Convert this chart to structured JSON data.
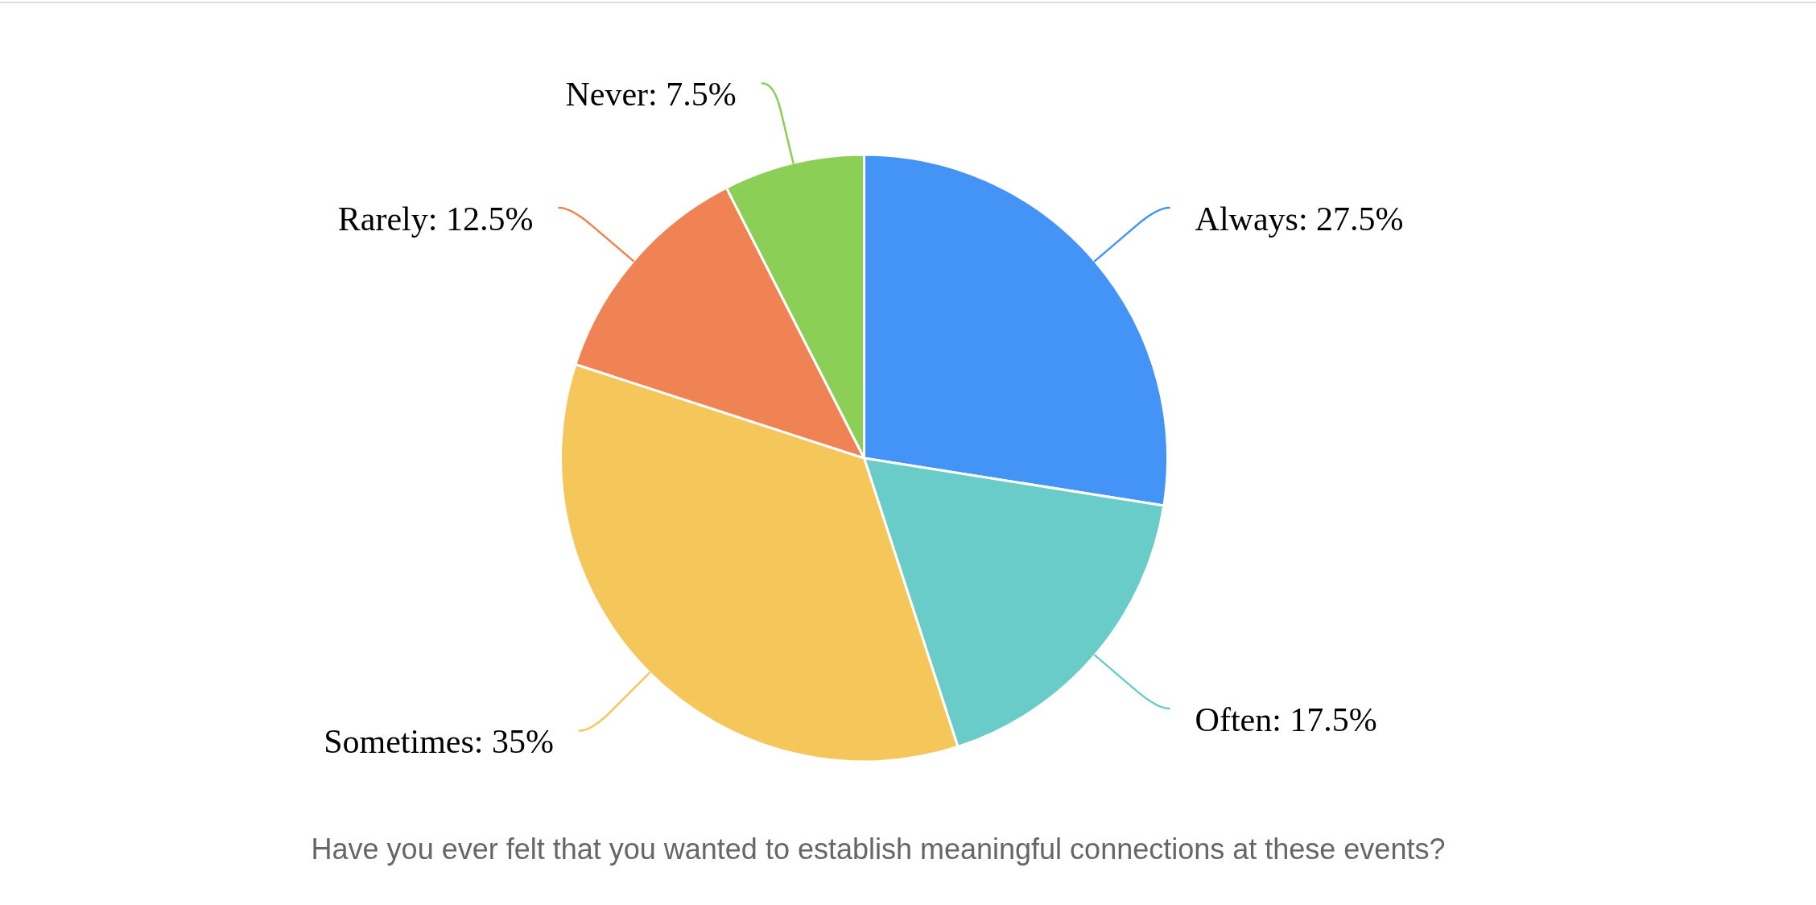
{
  "chart_data": {
    "type": "pie",
    "title": "Have you ever felt that you wanted to establish meaningful connections at these events?",
    "categories": [
      "Always",
      "Often",
      "Sometimes",
      "Rarely",
      "Never"
    ],
    "values": [
      27.5,
      17.5,
      35,
      12.5,
      7.5
    ],
    "colors": [
      "#4394f6",
      "#6accc8",
      "#f5c75b",
      "#ef8353",
      "#8bcf56"
    ],
    "value_labels": [
      "27.5%",
      "17.5%",
      "35%",
      "12.5%",
      "7.5%"
    ]
  }
}
